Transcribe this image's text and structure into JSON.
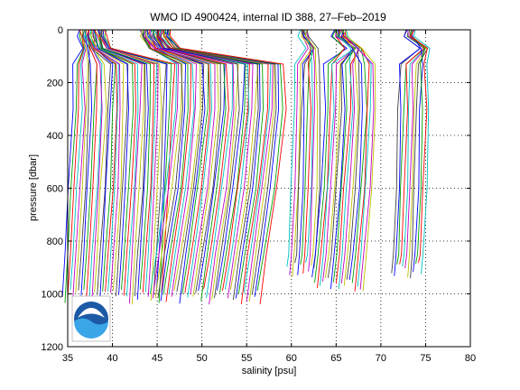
{
  "chart_data": {
    "type": "line",
    "title": "WMO ID 4900424, internal ID 388, 27–Feb–2019",
    "xlabel": "salinity [psu]",
    "ylabel": "pressure [dbar]",
    "xlim": [
      35,
      80
    ],
    "ylim": [
      0,
      1200
    ],
    "y_reversed": true,
    "x_ticks": [
      "35",
      "40",
      "45",
      "50",
      "55",
      "60",
      "65",
      "70",
      "75",
      "80"
    ],
    "y_ticks": [
      "0",
      "200",
      "400",
      "600",
      "800",
      "1000",
      "1200"
    ],
    "grid": "dotted",
    "legend": "none",
    "profile_offset_step_psu": 0.3,
    "profile_colors": [
      "#0000ff",
      "#00a000",
      "#ff0000",
      "#00c0c0",
      "#c000c0",
      "#c0c000",
      "#404040"
    ],
    "series": [
      {
        "offset_start": 35.6,
        "count": 38,
        "surface_salinity": 36.3,
        "bottom_pressure": 1000,
        "halocline_shift": 0.5,
        "deep_shift": -1.2
      },
      {
        "offset_start": 47.0,
        "count": 42,
        "surface_salinity": 43.2,
        "bottom_pressure": 1000,
        "halocline_shift": 1.0,
        "deep_shift": -2.8
      },
      {
        "offset_start": 60.3,
        "count": 11,
        "surface_salinity": 61.0,
        "bottom_pressure": 900,
        "halocline_shift": 0.9,
        "deep_shift": -0.8
      },
      {
        "offset_start": 63.8,
        "count": 20,
        "surface_salinity": 64.7,
        "bottom_pressure": 950,
        "halocline_shift": 1.6,
        "deep_shift": -1.5
      },
      {
        "offset_start": 72.0,
        "count": 12,
        "surface_salinity": 72.8,
        "bottom_pressure": 900,
        "halocline_shift": 1.4,
        "deep_shift": -0.8
      }
    ],
    "logo": {
      "type": "NOAA seal",
      "text": "NOAA"
    }
  }
}
